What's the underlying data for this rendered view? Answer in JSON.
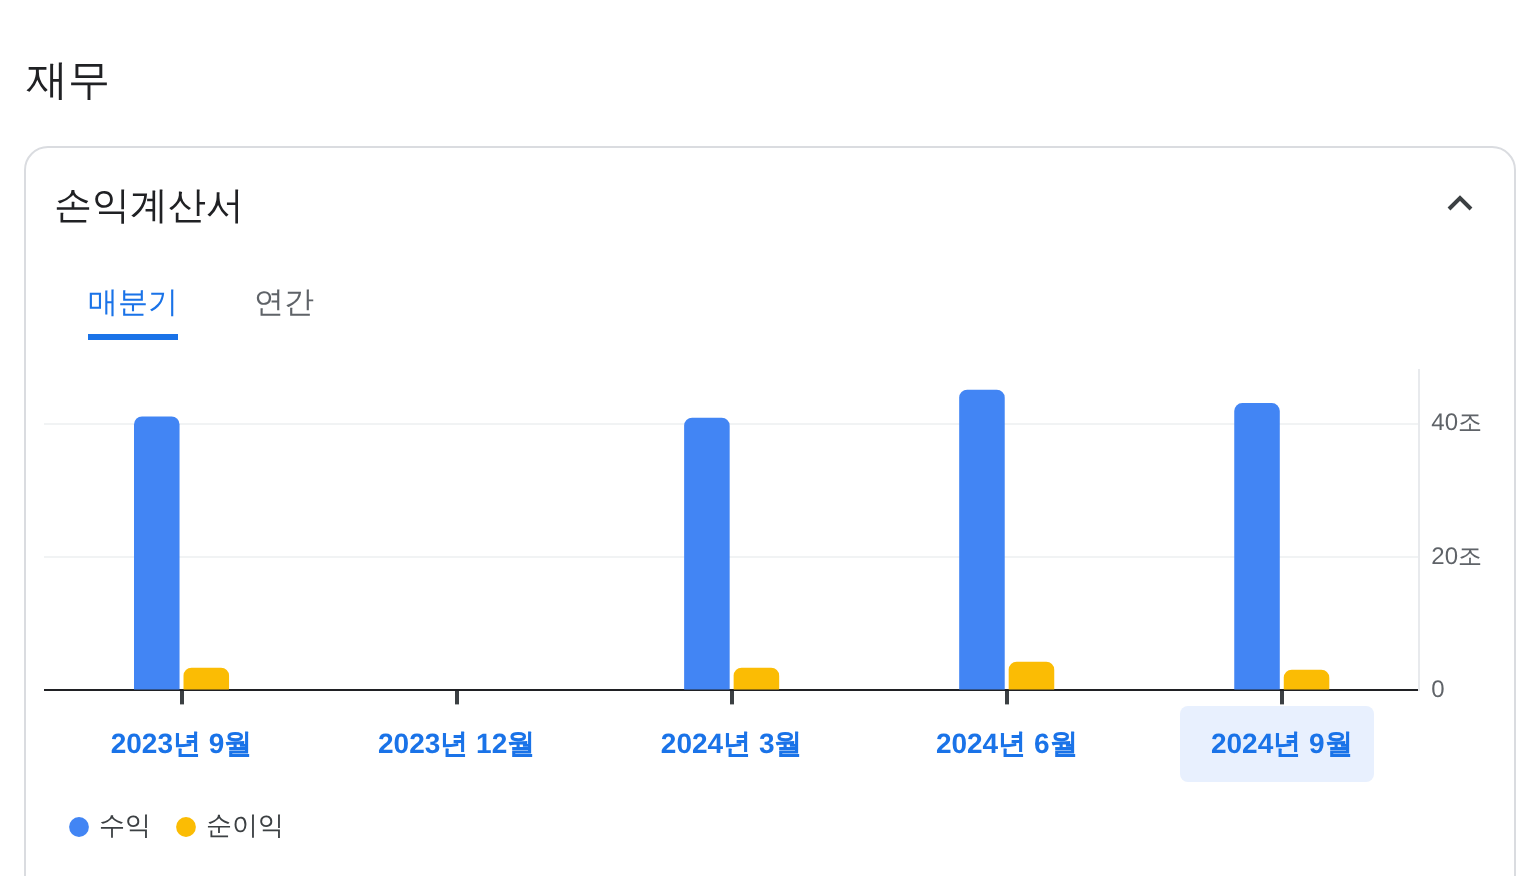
{
  "chart_data": {
    "type": "bar",
    "title": "재무",
    "subtitle": "손익계산서",
    "annotations": [
      "매분기",
      "연간"
    ],
    "categories": [
      "2023년 9월",
      "2023년 12월",
      "2024년 3월",
      "2024년 6월",
      "2024년 9월"
    ],
    "series": [
      {
        "name": "수익",
        "color": "#4285f4",
        "values": [
          41.1,
          null,
          40.9,
          45.1,
          43.1
        ]
      },
      {
        "name": "순이익",
        "color": "#fbbc04",
        "values": [
          3.4,
          null,
          3.4,
          4.3,
          3.1
        ]
      }
    ],
    "ylim": [
      0,
      48
    ],
    "yticks": [
      0,
      {
        "value": 20,
        "label": "20조"
      },
      {
        "value": 40,
        "label": "40조"
      }
    ],
    "grid": "y",
    "legend": "bottom left"
  }
}
